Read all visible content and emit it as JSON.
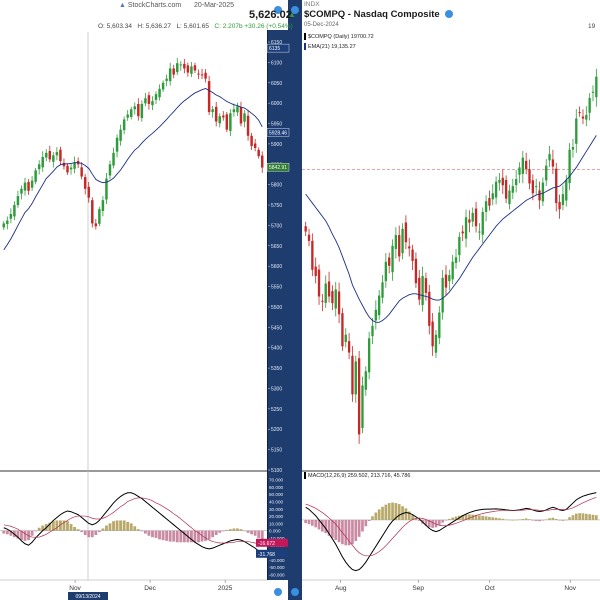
{
  "left_header": {
    "brand": "StockCharts.com",
    "date": "20-Mar-2025",
    "last_price": "5,626.02",
    "open": "O: 5,603.34",
    "high": "H: 5,636.27",
    "low": "L: 5,601.65",
    "close_change": "C: 2.207b +30.26 (+0.54%)"
  },
  "right_header": {
    "exchange": "INDX",
    "title": "$COMPQ - Nasdaq Composite",
    "date": "05-Dec-2024",
    "legend_price": "$COMPQ (Daily) 19700.72",
    "legend_ema": "EMA(21) 19,135.27",
    "price_top_right": "19"
  },
  "left_chart": {
    "y_ticks": [
      "6150",
      "6100",
      "6050",
      "6000",
      "5950",
      "5900",
      "5850",
      "5800",
      "5750",
      "5700",
      "5650",
      "5600",
      "5550",
      "5500",
      "5450",
      "5400",
      "5350",
      "5300",
      "5250",
      "5200",
      "5150",
      "5100"
    ],
    "price_badges": [
      {
        "value": "6135",
        "price": 6135,
        "color": "#1c3e7a"
      },
      {
        "value": "5928.46",
        "price": 5928.46,
        "color": "#1c3e7a"
      },
      {
        "value": "5842.91",
        "price": 5842.91,
        "color": "#2e7d32"
      }
    ],
    "macd_ticks": [
      "70.000",
      "60.000",
      "50.000",
      "40.000",
      "30.000",
      "20.000",
      "10.000",
      "0.000",
      "-10.000",
      "-20.000",
      "-30.000",
      "-40.000",
      "-50.000",
      "-60.000"
    ],
    "macd_badges": [
      {
        "value": "-16.672",
        "val": -16.672,
        "color": "#c2185b"
      },
      {
        "value": "-31.768",
        "val": -31.768,
        "color": "#1c3e7a"
      }
    ],
    "x_labels": [
      {
        "label": "Nov",
        "frac": 0.28
      },
      {
        "label": "Dec",
        "frac": 0.56
      },
      {
        "label": "2025",
        "frac": 0.84
      }
    ],
    "crosshair_date": "09/13/2024"
  },
  "right_chart": {
    "x_labels": [
      {
        "label": "Aug",
        "frac": 0.13
      },
      {
        "label": "Sep",
        "frac": 0.39
      },
      {
        "label": "Oct",
        "frac": 0.63
      },
      {
        "label": "Nov",
        "frac": 0.9
      }
    ],
    "macd_legend": "MACD(12,26,9) 259.502, 213.716, 45.786"
  },
  "chart_data": [
    {
      "type": "candlestick",
      "title": "",
      "series": [
        {
          "name": "Price"
        },
        {
          "name": "EMA"
        }
      ],
      "ylim": [
        5100,
        6150
      ],
      "x_axis": [
        "Nov",
        "Dec",
        "2025"
      ],
      "close": [
        5705,
        5712,
        5728,
        5750,
        5772,
        5790,
        5805,
        5785,
        5810,
        5835,
        5850,
        5868,
        5878,
        5862,
        5872,
        5880,
        5858,
        5845,
        5830,
        5842,
        5855,
        5850,
        5820,
        5790,
        5768,
        5705,
        5698,
        5740,
        5762,
        5815,
        5850,
        5878,
        5915,
        5935,
        5960,
        5972,
        5985,
        5992,
        5968,
        5998,
        6012,
        5998,
        6005,
        6022,
        6035,
        6050,
        6060,
        6085,
        6070,
        6098,
        6095,
        6085,
        6075,
        6090,
        6080,
        6072,
        6070,
        6060,
        5978,
        5985,
        5955,
        5968,
        5965,
        5935,
        5975,
        5985,
        5992,
        5950,
        5975,
        5920,
        5895,
        5890,
        5870,
        5842
      ],
      "ema": [
        5640,
        5653,
        5667,
        5683,
        5700,
        5716,
        5732,
        5741,
        5754,
        5770,
        5785,
        5800,
        5815,
        5824,
        5833,
        5843,
        5849,
        5851,
        5851,
        5852,
        5854,
        5854,
        5852,
        5847,
        5840,
        5826,
        5813,
        5808,
        5805,
        5806,
        5810,
        5816,
        5826,
        5836,
        5849,
        5862,
        5874,
        5885,
        5892,
        5902,
        5911,
        5919,
        5926,
        5934,
        5942,
        5951,
        5960,
        5970,
        5979,
        5989,
        5998,
        6006,
        6012,
        6019,
        6025,
        6029,
        6033,
        6036,
        6031,
        6026,
        6020,
        6016,
        6010,
        6004,
        6000,
        5996,
        5994,
        5990,
        5988,
        5982,
        5975,
        5968,
        5958,
        5942
      ]
    },
    {
      "type": "bar",
      "title": "MACD",
      "series": [
        {
          "name": "MACD"
        },
        {
          "name": "Signal"
        }
      ],
      "ylim": [
        -65,
        75
      ],
      "macd": [
        4,
        2,
        -1,
        -5,
        -9,
        -14,
        -18,
        -20,
        -16,
        -10,
        -5,
        0,
        4,
        9,
        14,
        18,
        22,
        25,
        27,
        26,
        24,
        22,
        18,
        14,
        10,
        8,
        10,
        14,
        20,
        26,
        32,
        38,
        43,
        47,
        50,
        52,
        52,
        50,
        47,
        44,
        40,
        36,
        32,
        28,
        24,
        20,
        16,
        12,
        8,
        4,
        0,
        -4,
        -8,
        -12,
        -16,
        -19,
        -22,
        -24,
        -25,
        -24,
        -22,
        -20,
        -18,
        -16,
        -14,
        -13,
        -12,
        -13,
        -15,
        -18,
        -21,
        -24,
        -28,
        -32
      ],
      "signal": [
        8,
        7,
        6,
        4,
        2,
        -1,
        -4,
        -7,
        -9,
        -9,
        -9,
        -7,
        -5,
        -2,
        1,
        4,
        8,
        11,
        14,
        17,
        19,
        20,
        20,
        20,
        19,
        17,
        16,
        16,
        17,
        19,
        22,
        25,
        29,
        33,
        36,
        40,
        42,
        44,
        45,
        45,
        44,
        43,
        41,
        38,
        36,
        33,
        30,
        27,
        23,
        20,
        16,
        12,
        8,
        4,
        0,
        -3,
        -7,
        -10,
        -13,
        -15,
        -16,
        -17,
        -17,
        -17,
        -16,
        -16,
        -15,
        -15,
        -15,
        -15,
        -16,
        -17,
        -18,
        -20
      ]
    },
    {
      "type": "candlestick",
      "title": "$COMPQ - Nasdaq Composite",
      "series": [
        {
          "name": "$COMPQ (Daily)"
        },
        {
          "name": "EMA(21)"
        }
      ],
      "x_axis": [
        "Aug",
        "Sep",
        "Oct",
        "Nov"
      ],
      "dashed_level_frac": 0.284,
      "close": [
        17980,
        17875,
        17550,
        17480,
        17250,
        17190,
        17395,
        17250,
        17175,
        17330,
        17050,
        16690,
        16820,
        16620,
        16150,
        16520,
        15700,
        16250,
        16410,
        16780,
        16920,
        17100,
        17260,
        17410,
        17640,
        17595,
        17820,
        17940,
        17700,
        18010,
        17860,
        17790,
        17650,
        17400,
        17215,
        17480,
        17290,
        16920,
        16690,
        16820,
        17070,
        17460,
        17350,
        17490,
        17640,
        17690,
        17920,
        17960,
        18140,
        18080,
        18190,
        18040,
        17980,
        18200,
        18320,
        18270,
        18410,
        18540,
        18560,
        18500,
        18350,
        18440,
        18490,
        18570,
        18700,
        18810,
        18680,
        18520,
        18410,
        18490,
        18330,
        18530,
        18720,
        18850,
        18710,
        18300,
        18230,
        18400,
        18560,
        18900,
        18930,
        19250,
        19320,
        19250,
        19290,
        19480,
        19550,
        19720
      ],
      "ema": [
        18400,
        18350,
        18300,
        18250,
        18200,
        18150,
        18100,
        18030,
        17950,
        17880,
        17800,
        17700,
        17600,
        17500,
        17380,
        17300,
        17220,
        17150,
        17080,
        17020,
        16980,
        16960,
        16960,
        16980,
        17010,
        17050,
        17100,
        17150,
        17200,
        17230,
        17250,
        17270,
        17280,
        17280,
        17270,
        17260,
        17250,
        17240,
        17220,
        17210,
        17210,
        17230,
        17260,
        17300,
        17350,
        17400,
        17450,
        17510,
        17570,
        17630,
        17690,
        17740,
        17790,
        17840,
        17890,
        17940,
        17990,
        18040,
        18080,
        18120,
        18150,
        18180,
        18210,
        18240,
        18270,
        18300,
        18330,
        18350,
        18370,
        18390,
        18400,
        18410,
        18430,
        18450,
        18470,
        18480,
        18490,
        18520,
        18560,
        18600,
        18650,
        18700,
        18760,
        18820,
        18880,
        18940,
        19000,
        19060
      ]
    },
    {
      "type": "bar",
      "title": "MACD(12,26,9)",
      "series": [
        {
          "name": "MACD"
        },
        {
          "name": "Signal"
        },
        {
          "name": "Histogram"
        }
      ],
      "ylim": [
        -550,
        350
      ],
      "macd": [
        120,
        100,
        70,
        40,
        0,
        -40,
        -80,
        -130,
        -180,
        -230,
        -290,
        -350,
        -400,
        -440,
        -470,
        -480,
        -470,
        -440,
        -400,
        -350,
        -300,
        -250,
        -200,
        -150,
        -100,
        -50,
        -10,
        20,
        45,
        60,
        70,
        65,
        50,
        30,
        10,
        -20,
        -50,
        -80,
        -100,
        -110,
        -100,
        -80,
        -60,
        -40,
        -20,
        0,
        20,
        40,
        55,
        70,
        80,
        90,
        95,
        100,
        102,
        103,
        104,
        105,
        103,
        100,
        95,
        92,
        90,
        92,
        96,
        102,
        110,
        105,
        95,
        85,
        80,
        85,
        95,
        110,
        120,
        110,
        95,
        90,
        100,
        130,
        160,
        190,
        210,
        225,
        235,
        245,
        252,
        259
      ],
      "signal": [
        150,
        140,
        125,
        110,
        90,
        70,
        45,
        20,
        -10,
        -40,
        -80,
        -120,
        -160,
        -200,
        -240,
        -280,
        -310,
        -330,
        -340,
        -340,
        -335,
        -320,
        -300,
        -275,
        -245,
        -210,
        -175,
        -140,
        -105,
        -70,
        -40,
        -15,
        5,
        15,
        18,
        15,
        5,
        -10,
        -25,
        -40,
        -50,
        -55,
        -55,
        -50,
        -42,
        -32,
        -20,
        -8,
        5,
        18,
        30,
        42,
        52,
        61,
        68,
        74,
        79,
        84,
        87,
        89,
        90,
        90,
        90,
        90,
        91,
        93,
        96,
        98,
        97,
        95,
        92,
        90,
        90,
        94,
        99,
        101,
        100,
        98,
        98,
        104,
        115,
        130,
        146,
        162,
        177,
        191,
        203,
        214
      ]
    }
  ]
}
